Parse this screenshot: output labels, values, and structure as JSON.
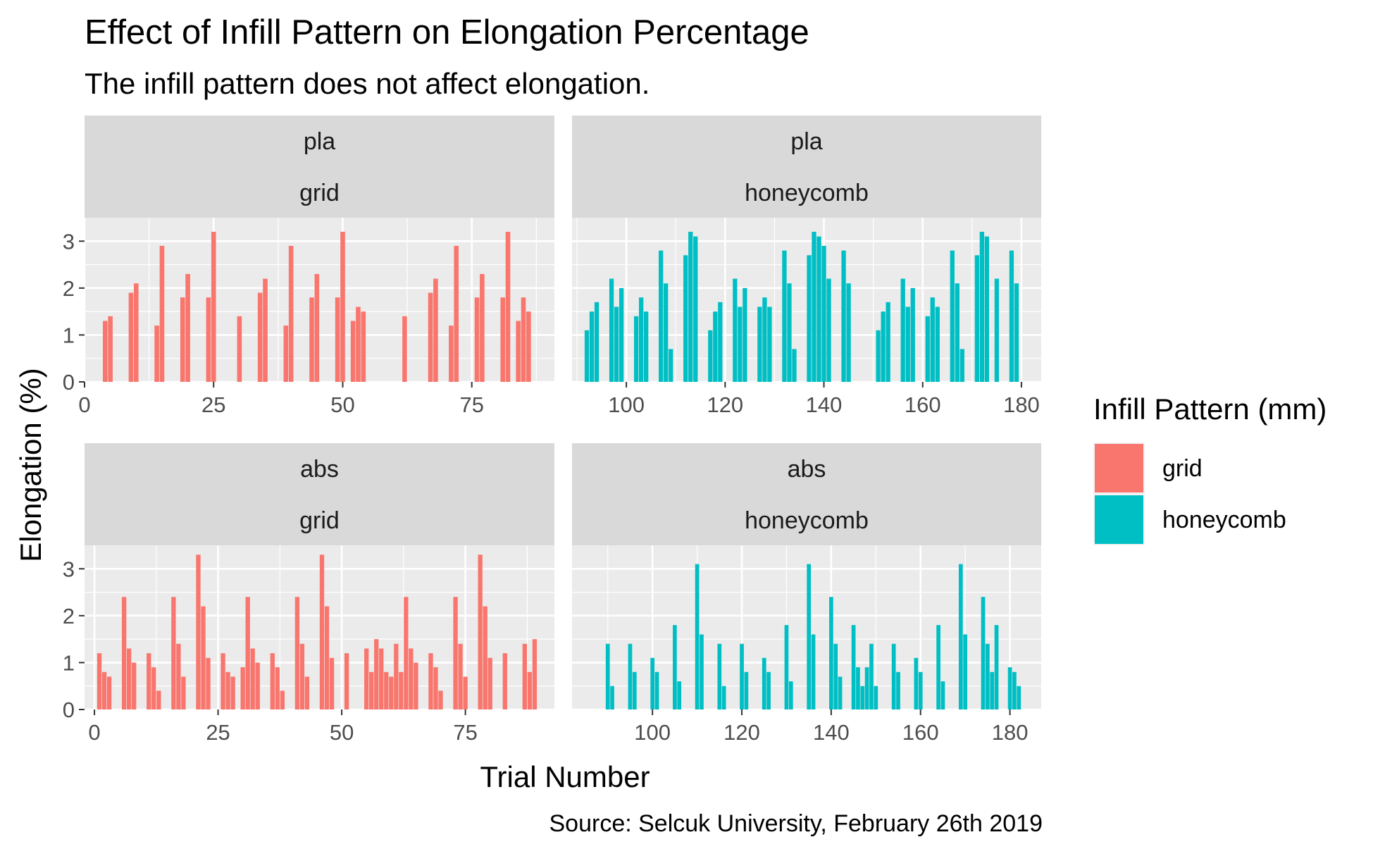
{
  "colors": {
    "grid": "#F8766D",
    "honeycomb": "#00BFC4",
    "panel_bg": "#EBEBEB",
    "strip_bg": "#D9D9D9",
    "grid_line": "#FFFFFF",
    "axis_text": "#4D4D4D"
  },
  "chart_data": {
    "type": "bar",
    "title": "Effect of Infill Pattern on Elongation Percentage",
    "subtitle": "The infill pattern does not affect elongation.",
    "xlabel": "Trial Number",
    "ylabel": "Elongation (%)",
    "caption": "Source: Selcuk University, February 26th 2019",
    "legend": {
      "title": "Infill Pattern (mm)",
      "position": "right",
      "entries": [
        {
          "label": "grid",
          "color_key": "grid"
        },
        {
          "label": "honeycomb",
          "color_key": "honeycomb"
        }
      ]
    },
    "grid": true,
    "facet_rows": [
      "pla",
      "abs"
    ],
    "facet_cols": [
      "grid",
      "honeycomb"
    ],
    "ylim": [
      0,
      3.5
    ],
    "yticks": [
      0,
      1,
      2,
      3
    ],
    "panels": [
      {
        "row_label": "pla",
        "col_label": "grid",
        "fill": "grid",
        "xlim": [
          0,
          91
        ],
        "xticks": [
          0,
          25,
          50,
          75
        ],
        "bars": [
          [
            4,
            1.3
          ],
          [
            5,
            1.4
          ],
          [
            9,
            1.9
          ],
          [
            10,
            2.1
          ],
          [
            14,
            1.2
          ],
          [
            15,
            2.9
          ],
          [
            19,
            1.8
          ],
          [
            20,
            2.3
          ],
          [
            24,
            1.8
          ],
          [
            25,
            3.2
          ],
          [
            30,
            1.4
          ],
          [
            34,
            1.9
          ],
          [
            35,
            2.2
          ],
          [
            39,
            1.2
          ],
          [
            40,
            2.9
          ],
          [
            44,
            1.8
          ],
          [
            45,
            2.3
          ],
          [
            49,
            1.8
          ],
          [
            50,
            3.2
          ],
          [
            52,
            1.3
          ],
          [
            53,
            1.6
          ],
          [
            54,
            1.5
          ],
          [
            62,
            1.4
          ],
          [
            67,
            1.9
          ],
          [
            68,
            2.2
          ],
          [
            71,
            1.2
          ],
          [
            72,
            2.9
          ],
          [
            76,
            1.8
          ],
          [
            77,
            2.3
          ],
          [
            81,
            1.8
          ],
          [
            82,
            3.2
          ],
          [
            84,
            1.3
          ],
          [
            85,
            1.8
          ],
          [
            86,
            1.5
          ]
        ]
      },
      {
        "row_label": "pla",
        "col_label": "honeycomb",
        "fill": "honeycomb",
        "xlim": [
          89,
          184
        ],
        "xticks": [
          100,
          120,
          140,
          160,
          180
        ],
        "bars": [
          [
            92,
            1.1
          ],
          [
            93,
            1.5
          ],
          [
            94,
            1.7
          ],
          [
            97,
            2.2
          ],
          [
            98,
            1.6
          ],
          [
            99,
            2.0
          ],
          [
            102,
            1.4
          ],
          [
            103,
            1.8
          ],
          [
            104,
            1.5
          ],
          [
            107,
            2.8
          ],
          [
            108,
            2.1
          ],
          [
            109,
            0.7
          ],
          [
            112,
            2.7
          ],
          [
            113,
            3.2
          ],
          [
            114,
            3.1
          ],
          [
            117,
            1.1
          ],
          [
            118,
            1.5
          ],
          [
            119,
            1.7
          ],
          [
            122,
            2.2
          ],
          [
            123,
            1.6
          ],
          [
            124,
            2.0
          ],
          [
            127,
            1.6
          ],
          [
            128,
            1.8
          ],
          [
            129,
            1.6
          ],
          [
            132,
            2.8
          ],
          [
            133,
            2.1
          ],
          [
            134,
            0.7
          ],
          [
            137,
            2.7
          ],
          [
            138,
            3.2
          ],
          [
            139,
            3.1
          ],
          [
            140,
            2.9
          ],
          [
            141,
            2.2
          ],
          [
            144,
            2.8
          ],
          [
            145,
            2.1
          ],
          [
            151,
            1.1
          ],
          [
            152,
            1.5
          ],
          [
            153,
            1.7
          ],
          [
            156,
            2.2
          ],
          [
            157,
            1.6
          ],
          [
            158,
            2.0
          ],
          [
            161,
            1.4
          ],
          [
            162,
            1.8
          ],
          [
            163,
            1.6
          ],
          [
            166,
            2.8
          ],
          [
            167,
            2.1
          ],
          [
            168,
            0.7
          ],
          [
            171,
            2.7
          ],
          [
            172,
            3.2
          ],
          [
            173,
            3.1
          ],
          [
            175,
            2.2
          ],
          [
            178,
            2.8
          ],
          [
            179,
            2.1
          ]
        ]
      },
      {
        "row_label": "abs",
        "col_label": "grid",
        "fill": "grid",
        "xlim": [
          -2,
          93
        ],
        "xticks": [
          0,
          25,
          50,
          75
        ],
        "bars": [
          [
            1,
            1.2
          ],
          [
            2,
            0.8
          ],
          [
            3,
            0.7
          ],
          [
            6,
            2.4
          ],
          [
            7,
            1.3
          ],
          [
            8,
            1.0
          ],
          [
            11,
            1.2
          ],
          [
            12,
            0.9
          ],
          [
            13,
            0.4
          ],
          [
            16,
            2.4
          ],
          [
            17,
            1.4
          ],
          [
            18,
            0.7
          ],
          [
            21,
            3.3
          ],
          [
            22,
            2.2
          ],
          [
            23,
            1.1
          ],
          [
            26,
            1.2
          ],
          [
            27,
            0.8
          ],
          [
            28,
            0.7
          ],
          [
            30,
            0.9
          ],
          [
            31,
            2.4
          ],
          [
            32,
            1.3
          ],
          [
            33,
            1.0
          ],
          [
            36,
            1.2
          ],
          [
            37,
            0.9
          ],
          [
            38,
            0.4
          ],
          [
            41,
            2.4
          ],
          [
            42,
            1.4
          ],
          [
            43,
            0.7
          ],
          [
            46,
            3.3
          ],
          [
            47,
            2.2
          ],
          [
            48,
            1.1
          ],
          [
            51,
            1.2
          ],
          [
            55,
            1.3
          ],
          [
            56,
            0.8
          ],
          [
            57,
            1.5
          ],
          [
            58,
            1.3
          ],
          [
            59,
            0.8
          ],
          [
            60,
            0.7
          ],
          [
            61,
            1.4
          ],
          [
            62,
            0.8
          ],
          [
            63,
            2.4
          ],
          [
            64,
            1.3
          ],
          [
            65,
            1.0
          ],
          [
            68,
            1.2
          ],
          [
            69,
            0.9
          ],
          [
            70,
            0.4
          ],
          [
            73,
            2.4
          ],
          [
            74,
            1.4
          ],
          [
            75,
            0.7
          ],
          [
            78,
            3.3
          ],
          [
            79,
            2.2
          ],
          [
            80,
            1.1
          ],
          [
            83,
            1.2
          ],
          [
            87,
            1.4
          ],
          [
            88,
            0.8
          ],
          [
            89,
            1.5
          ]
        ]
      },
      {
        "row_label": "abs",
        "col_label": "honeycomb",
        "fill": "honeycomb",
        "xlim": [
          82,
          187
        ],
        "xticks": [
          100,
          120,
          140,
          160,
          180
        ],
        "bars": [
          [
            90,
            1.4
          ],
          [
            91,
            0.5
          ],
          [
            95,
            1.4
          ],
          [
            96,
            0.8
          ],
          [
            100,
            1.1
          ],
          [
            101,
            0.8
          ],
          [
            105,
            1.8
          ],
          [
            106,
            0.6
          ],
          [
            110,
            3.1
          ],
          [
            111,
            1.6
          ],
          [
            115,
            1.4
          ],
          [
            116,
            0.5
          ],
          [
            120,
            1.4
          ],
          [
            121,
            0.8
          ],
          [
            125,
            1.1
          ],
          [
            126,
            0.8
          ],
          [
            130,
            1.8
          ],
          [
            131,
            0.6
          ],
          [
            135,
            3.1
          ],
          [
            136,
            1.6
          ],
          [
            140,
            2.4
          ],
          [
            141,
            1.4
          ],
          [
            142,
            0.7
          ],
          [
            145,
            1.8
          ],
          [
            146,
            0.9
          ],
          [
            147,
            0.5
          ],
          [
            148,
            0.9
          ],
          [
            149,
            1.4
          ],
          [
            150,
            0.5
          ],
          [
            154,
            1.4
          ],
          [
            155,
            0.8
          ],
          [
            159,
            1.1
          ],
          [
            160,
            0.8
          ],
          [
            164,
            1.8
          ],
          [
            165,
            0.6
          ],
          [
            169,
            3.1
          ],
          [
            170,
            1.6
          ],
          [
            174,
            2.4
          ],
          [
            175,
            1.4
          ],
          [
            176,
            0.8
          ],
          [
            177,
            1.8
          ],
          [
            180,
            0.9
          ],
          [
            181,
            0.8
          ],
          [
            182,
            0.5
          ]
        ]
      }
    ]
  }
}
